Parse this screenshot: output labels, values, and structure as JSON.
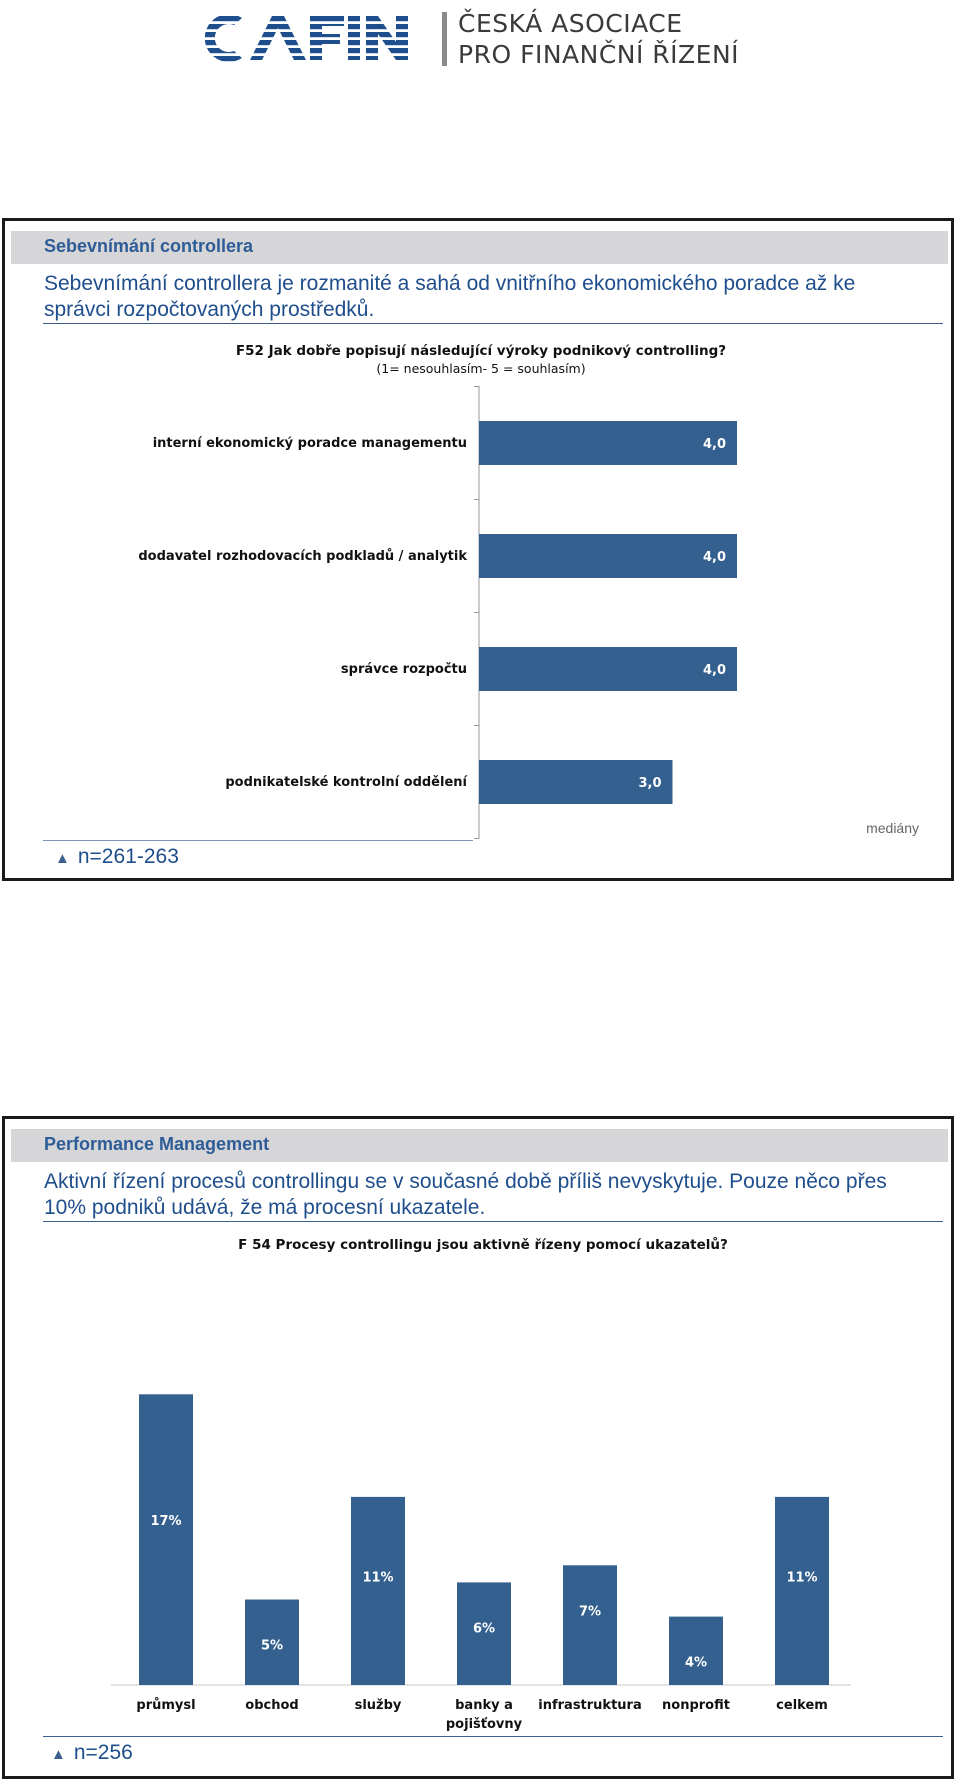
{
  "header": {
    "logo_text": "CA FIN",
    "org_line1": "ČESKÁ ASOCIACE",
    "org_line2": "PRO FINANČNÍ ŘÍZENÍ"
  },
  "slide1": {
    "title": "Sebevnímání controllera",
    "text": "Sebevnímání controllera je rozmanité a sahá od vnitřního ekonomického poradce až ke správci rozpočtovaných prostředků.",
    "n_label": "n=261-263",
    "note": "mediány"
  },
  "slide2": {
    "title": "Performance Management",
    "text": "Aktivní řízení procesů controllingu se v současné době příliš nevyskytuje. Pouze něco přes 10% podniků udává, že má procesní ukazatele.",
    "n_label": "n=256"
  },
  "chart_data": [
    {
      "type": "bar",
      "orientation": "horizontal",
      "title": "F52 Jak dobře popisují následující výroky podnikový controlling?",
      "subtitle": "(1= nesouhlasím- 5 = souhlasím)",
      "categories": [
        "interní ekonomický poradce managementu",
        "dodavatel rozhodovacích podkladů / analytik",
        "správce rozpočtu",
        "podnikatelské kontrolní oddělení"
      ],
      "values": [
        4.0,
        4.0,
        4.0,
        3.0
      ],
      "value_labels": [
        "4,0",
        "4,0",
        "4,0",
        "3,0"
      ],
      "xlim": [
        0,
        5
      ],
      "grid": false,
      "bar_color": "#34608f"
    },
    {
      "type": "bar",
      "orientation": "vertical",
      "title": "F 54 Procesy controllingu jsou aktivně řízeny pomocí ukazatelů?",
      "categories": [
        "průmysl",
        "obchod",
        "služby",
        "banky a pojišťovny",
        "infrastruktura",
        "nonprofit",
        "celkem"
      ],
      "values": [
        17,
        5,
        11,
        6,
        7,
        4,
        11
      ],
      "value_labels": [
        "17%",
        "5%",
        "11%",
        "6%",
        "7%",
        "4%",
        "11%"
      ],
      "ylim": [
        0,
        18.5
      ],
      "grid": false,
      "bar_color": "#34608f"
    }
  ]
}
